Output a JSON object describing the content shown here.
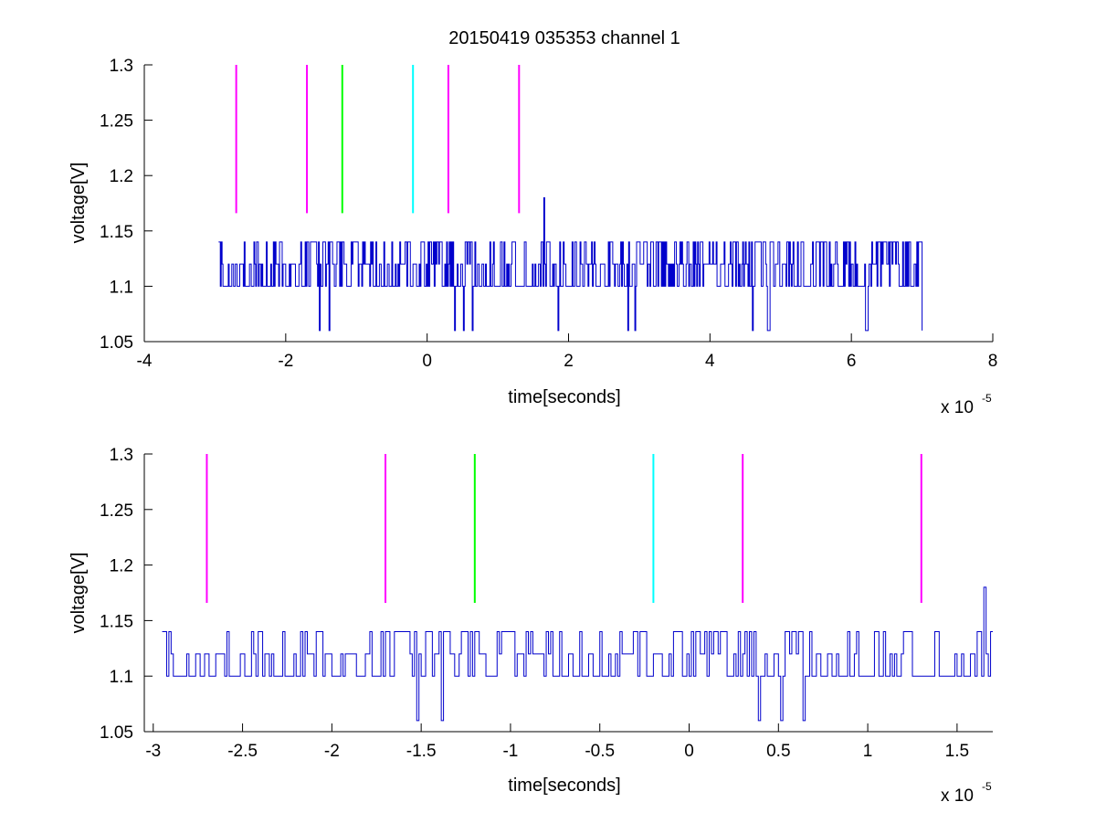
{
  "chart_data": [
    {
      "type": "line",
      "title": "20150419 035353 channel 1",
      "xlabel": "time[seconds]",
      "ylabel": "voltage[V]",
      "x_multiplier_label": "x 10",
      "x_multiplier_exp": "-5",
      "xlim": [
        -4,
        8
      ],
      "ylim": [
        1.05,
        1.3
      ],
      "xticks": [
        "-4",
        "-2",
        "0",
        "2",
        "4",
        "6",
        "8"
      ],
      "yticks": [
        "1.05",
        "1.1",
        "1.15",
        "1.2",
        "1.25",
        "1.3"
      ],
      "grid": false,
      "signal": {
        "color": "#0000cc",
        "x_range": [
          -2.95,
          7.0
        ],
        "baseline": 1.1,
        "levels": [
          1.06,
          1.1,
          1.12,
          1.14
        ],
        "spike": {
          "x": 1.65,
          "y": 1.18
        }
      },
      "markers": [
        {
          "x": -2.7,
          "color": "#ff00ff",
          "y_range": [
            1.166,
            1.3
          ]
        },
        {
          "x": -1.7,
          "color": "#ff00ff",
          "y_range": [
            1.166,
            1.3
          ]
        },
        {
          "x": -1.2,
          "color": "#00ff00",
          "y_range": [
            1.166,
            1.3
          ]
        },
        {
          "x": -0.2,
          "color": "#00ffff",
          "y_range": [
            1.166,
            1.3
          ]
        },
        {
          "x": 0.3,
          "color": "#ff00ff",
          "y_range": [
            1.166,
            1.3
          ]
        },
        {
          "x": 1.3,
          "color": "#ff00ff",
          "y_range": [
            1.166,
            1.3
          ]
        }
      ]
    },
    {
      "type": "line",
      "title": "",
      "xlabel": "time[seconds]",
      "ylabel": "voltage[V]",
      "x_multiplier_label": "x 10",
      "x_multiplier_exp": "-5",
      "xlim": [
        -3.05,
        1.7
      ],
      "ylim": [
        1.05,
        1.3
      ],
      "xticks": [
        "-3",
        "-2.5",
        "-2",
        "-1.5",
        "-1",
        "-0.5",
        "0",
        "0.5",
        "1",
        "1.5"
      ],
      "yticks": [
        "1.05",
        "1.1",
        "1.15",
        "1.2",
        "1.25",
        "1.3"
      ],
      "grid": false,
      "signal": {
        "color": "#0000cc",
        "x_range": [
          -2.95,
          1.7
        ],
        "baseline": 1.1,
        "levels": [
          1.06,
          1.1,
          1.12,
          1.14
        ],
        "spike": {
          "x": 1.65,
          "y": 1.18
        }
      },
      "markers": [
        {
          "x": -2.7,
          "color": "#ff00ff",
          "y_range": [
            1.166,
            1.3
          ]
        },
        {
          "x": -1.7,
          "color": "#ff00ff",
          "y_range": [
            1.166,
            1.3
          ]
        },
        {
          "x": -1.2,
          "color": "#00ff00",
          "y_range": [
            1.166,
            1.3
          ]
        },
        {
          "x": -0.2,
          "color": "#00ffff",
          "y_range": [
            1.166,
            1.3
          ]
        },
        {
          "x": 0.3,
          "color": "#ff00ff",
          "y_range": [
            1.166,
            1.3
          ]
        },
        {
          "x": 1.3,
          "color": "#ff00ff",
          "y_range": [
            1.166,
            1.3
          ]
        }
      ]
    }
  ]
}
